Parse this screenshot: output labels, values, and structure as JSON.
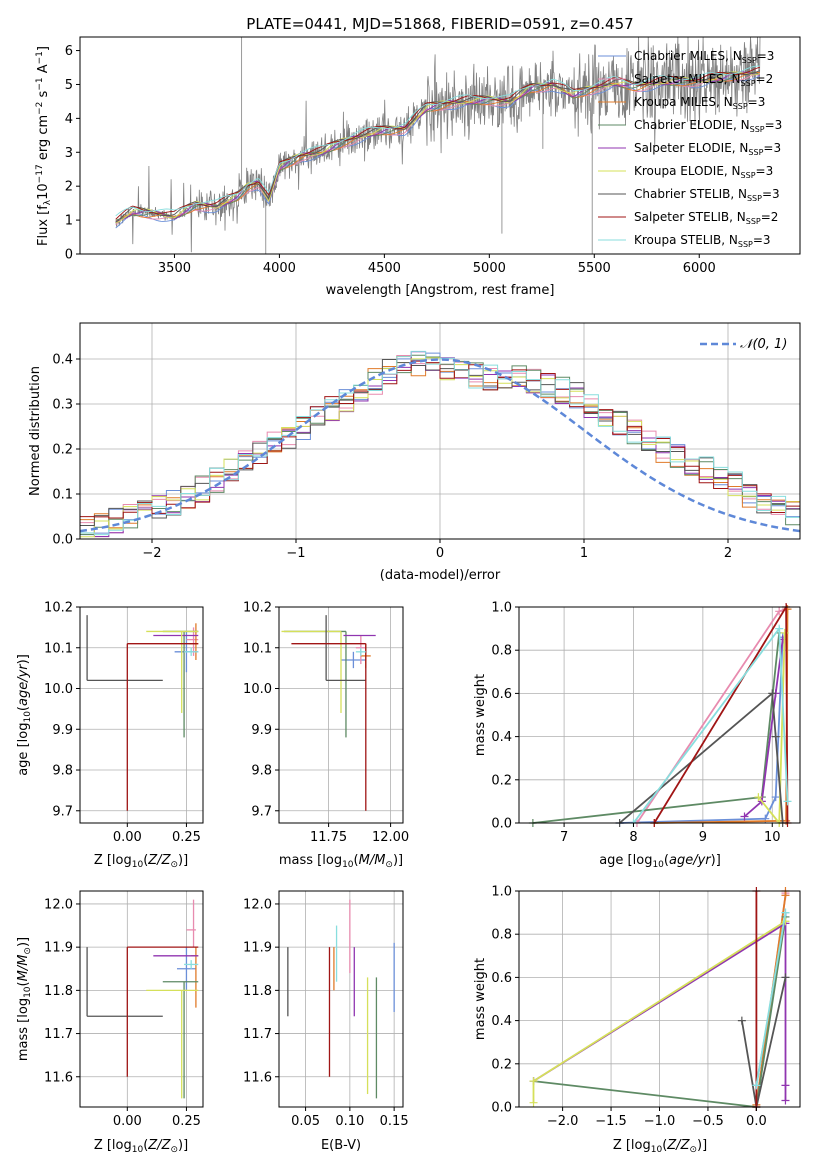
{
  "chart_data": [
    {
      "id": "spectrum",
      "type": "line",
      "title": "PLATE=0441, MJD=51868, FIBERID=0591, z=0.457",
      "xlabel": "wavelength [Angstrom, rest frame]",
      "ylabel": "Flux [f$_\\lambda$10$^{-17}$ erg cm$^{-2}$ s$^{-1}$ A$^{-1}$]",
      "xlim": [
        3050,
        6480
      ],
      "ylim": [
        0,
        6.4
      ],
      "xticks": [
        3500,
        4000,
        4500,
        5000,
        5500,
        6000
      ],
      "yticks": [
        0,
        1,
        2,
        3,
        4,
        5,
        6
      ],
      "legend_position": "top-right",
      "data_series": {
        "name": "data",
        "color": "#808080",
        "x": [
          3220,
          3300,
          3400,
          3500,
          3600,
          3700,
          3800,
          3850,
          3900,
          3950,
          4000,
          4100,
          4200,
          4300,
          4400,
          4500,
          4600,
          4700,
          4800,
          4900,
          5000,
          5100,
          5200,
          5300,
          5400,
          5500,
          5600,
          5700,
          5800,
          5900,
          6000,
          6100,
          6200,
          6290
        ],
        "y": [
          0.95,
          1.25,
          1.2,
          1.1,
          1.45,
          1.4,
          1.7,
          2.0,
          2.1,
          1.6,
          2.55,
          2.9,
          3.0,
          3.3,
          3.5,
          3.65,
          3.7,
          4.3,
          4.45,
          4.5,
          4.55,
          4.5,
          4.9,
          5.0,
          4.7,
          4.9,
          5.05,
          4.95,
          5.05,
          5.1,
          5.1,
          5.2,
          5.3,
          5.35
        ]
      },
      "series": [
        {
          "name": "Chabrier MILES, N$_{SSP}$=3",
          "color": "#6b8fd8"
        },
        {
          "name": "Salpeter MILES, N$_{SSP}$=2",
          "color": "#e88baf"
        },
        {
          "name": "Kroupa MILES, N$_{SSP}$=3",
          "color": "#e07b2a"
        },
        {
          "name": "Chabrier ELODIE, N$_{SSP}$=3",
          "color": "#5e8a64"
        },
        {
          "name": "Salpeter ELODIE, N$_{SSP}$=3",
          "color": "#9035b0"
        },
        {
          "name": "Kroupa ELODIE, N$_{SSP}$=3",
          "color": "#d5e05a"
        },
        {
          "name": "Chabrier STELIB, N$_{SSP}$=3",
          "color": "#555555"
        },
        {
          "name": "Salpeter STELIB, N$_{SSP}$=2",
          "color": "#a01515"
        },
        {
          "name": "Kroupa STELIB, N$_{SSP}$=3",
          "color": "#88dede"
        }
      ]
    },
    {
      "id": "residuals",
      "type": "histogram",
      "xlabel": "(data-model)/error",
      "ylabel": "Normed distribution",
      "xlim": [
        -2.5,
        2.5
      ],
      "ylim": [
        0,
        0.48
      ],
      "xticks": [
        -2,
        -1,
        0,
        1,
        2
      ],
      "yticks": [
        0.0,
        0.1,
        0.2,
        0.3,
        0.4
      ],
      "legend": "$\\mathcal{N}(0,1)$",
      "legend_position": "top-right",
      "bin_width": 0.1,
      "envelope": [
        0.02,
        0.03,
        0.04,
        0.05,
        0.06,
        0.07,
        0.08,
        0.09,
        0.11,
        0.13,
        0.15,
        0.17,
        0.19,
        0.21,
        0.23,
        0.25,
        0.27,
        0.29,
        0.31,
        0.33,
        0.35,
        0.37,
        0.38,
        0.39,
        0.395,
        0.38,
        0.37,
        0.365,
        0.36,
        0.355,
        0.36,
        0.35,
        0.34,
        0.33,
        0.32,
        0.3,
        0.28,
        0.26,
        0.24,
        0.22,
        0.2,
        0.185,
        0.17,
        0.155,
        0.14,
        0.12,
        0.1,
        0.085,
        0.07,
        0.06
      ]
    },
    {
      "id": "age-vs-Z",
      "type": "errorbar",
      "xlabel": "Z [log$_{10}$($Z/Z_\\odot$)]",
      "ylabel": "age  [log$_{10}$($age/yr$)]",
      "xlim": [
        -0.2,
        0.32
      ],
      "ylim": [
        9.67,
        10.2
      ],
      "xticks": [
        0.0,
        0.25
      ],
      "yticks": [
        9.7,
        9.8,
        9.9,
        10.0,
        10.1,
        10.2
      ],
      "points": [
        {
          "x": 0.25,
          "y": 10.09,
          "x_err": [
            0.05,
            0.05
          ],
          "y_err": [
            0.05,
            0.05
          ],
          "color": "#6b8fd8"
        },
        {
          "x": 0.28,
          "y": 10.12,
          "x_err": [
            0.03,
            0.02
          ],
          "y_err": [
            0.04,
            0.03
          ],
          "color": "#e88baf"
        },
        {
          "x": 0.29,
          "y": 10.11,
          "x_err": [
            0.03,
            0.01
          ],
          "y_err": [
            0.04,
            0.05
          ],
          "color": "#e07b2a"
        },
        {
          "x": 0.24,
          "y": 10.14,
          "x_err": [
            0.09,
            0.06
          ],
          "y_err": [
            0.26,
            0.0
          ],
          "color": "#5e8a64"
        },
        {
          "x": 0.21,
          "y": 10.13,
          "x_err": [
            0.1,
            0.09
          ],
          "y_err": [
            0.0,
            0.0
          ],
          "color": "#9035b0"
        },
        {
          "x": 0.23,
          "y": 10.14,
          "x_err": [
            0.15,
            0.07
          ],
          "y_err": [
            0.2,
            0.0
          ],
          "color": "#d5e05a"
        },
        {
          "x": -0.17,
          "y": 10.02,
          "x_err": [
            0.0,
            0.32
          ],
          "y_err": [
            0.0,
            0.16
          ],
          "color": "#555555"
        },
        {
          "x": 0.0,
          "y": 10.11,
          "x_err": [
            0.0,
            0.3
          ],
          "y_err": [
            0.41,
            0.0
          ],
          "color": "#a01515"
        },
        {
          "x": 0.27,
          "y": 10.09,
          "x_err": [
            0.03,
            0.03
          ],
          "y_err": [
            0.01,
            0.01
          ],
          "color": "#88dede"
        }
      ]
    },
    {
      "id": "age-vs-mass",
      "type": "errorbar",
      "xlabel": "mass [log$_{10}$($M/M_\\odot$)]",
      "xlim": [
        11.55,
        12.05
      ],
      "ylim": [
        9.67,
        10.2
      ],
      "xticks": [
        11.75,
        12.0
      ],
      "yticks": [
        9.7,
        9.8,
        9.9,
        10.0,
        10.1,
        10.2
      ],
      "points": [
        {
          "x": 11.85,
          "y": 10.07,
          "x_err": [
            0.05,
            0.05
          ],
          "y_err": [
            0.02,
            0.02
          ],
          "color": "#6b8fd8"
        },
        {
          "x": 11.88,
          "y": 10.1,
          "x_err": [
            0.02,
            0.02
          ],
          "y_err": [
            0.04,
            0.03
          ],
          "color": "#e88baf"
        },
        {
          "x": 11.9,
          "y": 10.08,
          "x_err": [
            0.02,
            0.02
          ],
          "y_err": [
            0.03,
            0.03
          ],
          "color": "#e07b2a"
        },
        {
          "x": 11.82,
          "y": 10.14,
          "x_err": [
            0.25,
            0.0
          ],
          "y_err": [
            0.26,
            0.0
          ],
          "color": "#5e8a64"
        },
        {
          "x": 11.88,
          "y": 10.13,
          "x_err": [
            0.07,
            0.06
          ],
          "y_err": [
            0.0,
            0.0
          ],
          "color": "#9035b0"
        },
        {
          "x": 11.8,
          "y": 10.14,
          "x_err": [
            0.24,
            0.0
          ],
          "y_err": [
            0.2,
            0.0
          ],
          "color": "#d5e05a"
        },
        {
          "x": 11.74,
          "y": 10.02,
          "x_err": [
            0.0,
            0.16
          ],
          "y_err": [
            0.0,
            0.16
          ],
          "color": "#555555"
        },
        {
          "x": 11.9,
          "y": 10.11,
          "x_err": [
            0.3,
            0.0
          ],
          "y_err": [
            0.41,
            0.0
          ],
          "color": "#a01515"
        },
        {
          "x": 11.88,
          "y": 10.09,
          "x_err": [
            0.02,
            0.02
          ],
          "y_err": [
            0.01,
            0.01
          ],
          "color": "#88dede"
        }
      ]
    },
    {
      "id": "weight-vs-age",
      "type": "line",
      "xlabel": "age  [log$_{10}$($age/yr$)]",
      "ylabel": "mass weight",
      "xlim": [
        6.35,
        10.4
      ],
      "ylim": [
        0,
        1.0
      ],
      "xticks": [
        7,
        8,
        9,
        10
      ],
      "yticks": [
        0.0,
        0.2,
        0.4,
        0.6,
        0.8,
        1.0
      ],
      "series": [
        {
          "color": "#6b8fd8",
          "x": [
            7.8,
            9.9,
            10.05,
            10.15
          ],
          "y": [
            0.0,
            0.02,
            0.12,
            0.86
          ]
        },
        {
          "color": "#e88baf",
          "x": [
            8.05,
            10.1,
            10.2
          ],
          "y": [
            0.0,
            0.98,
            0.99
          ]
        },
        {
          "color": "#e07b2a",
          "x": [
            8.3,
            10.2,
            10.22
          ],
          "y": [
            0.0,
            0.01,
            0.99
          ]
        },
        {
          "color": "#5e8a64",
          "x": [
            6.55,
            9.85,
            10.1
          ],
          "y": [
            0.0,
            0.12,
            0.88
          ]
        },
        {
          "color": "#9035b0",
          "x": [
            9.6,
            9.85,
            10.05,
            10.15
          ],
          "y": [
            0.03,
            0.1,
            0.6,
            0.85
          ]
        },
        {
          "color": "#d5e05a",
          "x": [
            9.8,
            10.1,
            10.18
          ],
          "y": [
            0.12,
            0.0,
            0.88
          ]
        },
        {
          "color": "#555555",
          "x": [
            7.8,
            10.0,
            10.05,
            10.15
          ],
          "y": [
            0.0,
            0.6,
            0.4,
            0.0
          ]
        },
        {
          "color": "#a01515",
          "x": [
            8.3,
            10.2,
            10.22
          ],
          "y": [
            0.0,
            1.0,
            0.0
          ]
        },
        {
          "color": "#88dede",
          "x": [
            8.0,
            10.1,
            10.22
          ],
          "y": [
            0.0,
            0.9,
            0.1
          ]
        }
      ]
    },
    {
      "id": "mass-vs-Z",
      "type": "errorbar",
      "xlabel": "Z [log$_{10}$($Z/Z_\\odot$)]",
      "ylabel": "mass [log$_{10}$($M/M_\\odot$)]",
      "xlim": [
        -0.2,
        0.32
      ],
      "ylim": [
        11.53,
        12.03
      ],
      "xticks": [
        0.0,
        0.25
      ],
      "yticks": [
        11.6,
        11.7,
        11.8,
        11.9,
        12.0
      ],
      "points": [
        {
          "x": 0.25,
          "y": 11.85,
          "x_err": [
            0.04,
            0.04
          ],
          "y_err": [
            0.05,
            0.05
          ],
          "color": "#6b8fd8"
        },
        {
          "x": 0.28,
          "y": 11.94,
          "x_err": [
            0.03,
            0.01
          ],
          "y_err": [
            0.04,
            0.07
          ],
          "color": "#e88baf"
        },
        {
          "x": 0.29,
          "y": 11.88,
          "x_err": [
            0.02,
            0.01
          ],
          "y_err": [
            0.12,
            0.02
          ],
          "color": "#e07b2a"
        },
        {
          "x": 0.24,
          "y": 11.82,
          "x_err": [
            0.09,
            0.06
          ],
          "y_err": [
            0.27,
            0.0
          ],
          "color": "#5e8a64"
        },
        {
          "x": 0.21,
          "y": 11.88,
          "x_err": [
            0.1,
            0.09
          ],
          "y_err": [
            0.0,
            0.0
          ],
          "color": "#9035b0"
        },
        {
          "x": 0.23,
          "y": 11.8,
          "x_err": [
            0.15,
            0.07
          ],
          "y_err": [
            0.25,
            0.0
          ],
          "color": "#d5e05a"
        },
        {
          "x": -0.17,
          "y": 11.74,
          "x_err": [
            0.0,
            0.32
          ],
          "y_err": [
            0.0,
            0.16
          ],
          "color": "#555555"
        },
        {
          "x": 0.0,
          "y": 11.9,
          "x_err": [
            0.0,
            0.3
          ],
          "y_err": [
            0.3,
            0.0
          ],
          "color": "#a01515"
        },
        {
          "x": 0.27,
          "y": 11.86,
          "x_err": [
            0.03,
            0.03
          ],
          "y_err": [
            0.01,
            0.01
          ],
          "color": "#88dede"
        }
      ]
    },
    {
      "id": "mass-vs-EBV",
      "type": "errorbar",
      "xlabel": "E(B-V)",
      "xlim": [
        0.02,
        0.16
      ],
      "ylim": [
        11.53,
        12.03
      ],
      "xticks": [
        0.05,
        0.1,
        0.15
      ],
      "yticks": [
        11.6,
        11.7,
        11.8,
        11.9,
        12.0
      ],
      "points": [
        {
          "x": 0.15,
          "y": 11.85,
          "y_err": [
            0.1,
            0.06
          ],
          "color": "#6b8fd8"
        },
        {
          "x": 0.1,
          "y": 11.94,
          "y_err": [
            0.1,
            0.07
          ],
          "color": "#e88baf"
        },
        {
          "x": 0.082,
          "y": 11.85,
          "y_err": [
            0.05,
            0.05
          ],
          "color": "#e07b2a"
        },
        {
          "x": 0.13,
          "y": 11.7,
          "y_err": [
            0.15,
            0.13
          ],
          "color": "#5e8a64"
        },
        {
          "x": 0.105,
          "y": 11.82,
          "y_err": [
            0.08,
            0.08
          ],
          "color": "#9035b0"
        },
        {
          "x": 0.12,
          "y": 11.7,
          "y_err": [
            0.14,
            0.13
          ],
          "color": "#d5e05a"
        },
        {
          "x": 0.03,
          "y": 11.82,
          "y_err": [
            0.08,
            0.08
          ],
          "color": "#555555"
        },
        {
          "x": 0.077,
          "y": 11.76,
          "y_err": [
            0.16,
            0.14
          ],
          "color": "#a01515"
        },
        {
          "x": 0.085,
          "y": 11.87,
          "y_err": [
            0.05,
            0.08
          ],
          "color": "#88dede"
        }
      ]
    },
    {
      "id": "weight-vs-Z",
      "type": "line",
      "xlabel": "Z [log$_{10}$($Z/Z_\\odot$)]",
      "ylabel": "mass weight",
      "xlim": [
        -2.45,
        0.45
      ],
      "ylim": [
        0,
        1.0
      ],
      "xticks": [
        -2.0,
        -1.5,
        -1.0,
        -0.5,
        0.0
      ],
      "yticks": [
        0.0,
        0.2,
        0.4,
        0.6,
        0.8,
        1.0
      ],
      "series": [
        {
          "color": "#6b8fd8",
          "x": [
            0.0,
            0.3,
            0.3
          ],
          "y": [
            0.1,
            0.88,
            0.9
          ]
        },
        {
          "color": "#e88baf",
          "x": [
            0.0,
            0.3,
            0.3
          ],
          "y": [
            0.0,
            0.98,
            0.99
          ]
        },
        {
          "color": "#e07b2a",
          "x": [
            0.0,
            0.3,
            0.3
          ],
          "y": [
            0.01,
            0.98,
            1.0
          ]
        },
        {
          "color": "#5e8a64",
          "x": [
            -2.3,
            0.0,
            0.3
          ],
          "y": [
            0.12,
            0.0,
            0.88
          ]
        },
        {
          "color": "#9035b0",
          "x": [
            -2.3,
            0.3,
            0.3,
            0.3
          ],
          "y": [
            0.12,
            0.85,
            0.1,
            0.03
          ]
        },
        {
          "color": "#d5e05a",
          "x": [
            -2.3,
            -2.3,
            0.3
          ],
          "y": [
            0.02,
            0.12,
            0.86
          ]
        },
        {
          "color": "#555555",
          "x": [
            -0.15,
            0.0,
            0.3
          ],
          "y": [
            0.4,
            0.0,
            0.6
          ]
        },
        {
          "color": "#a01515",
          "x": [
            0.0,
            0.0
          ],
          "y": [
            0.0,
            1.0
          ]
        },
        {
          "color": "#88dede",
          "x": [
            0.0,
            0.3
          ],
          "y": [
            0.1,
            0.9
          ]
        }
      ]
    }
  ]
}
